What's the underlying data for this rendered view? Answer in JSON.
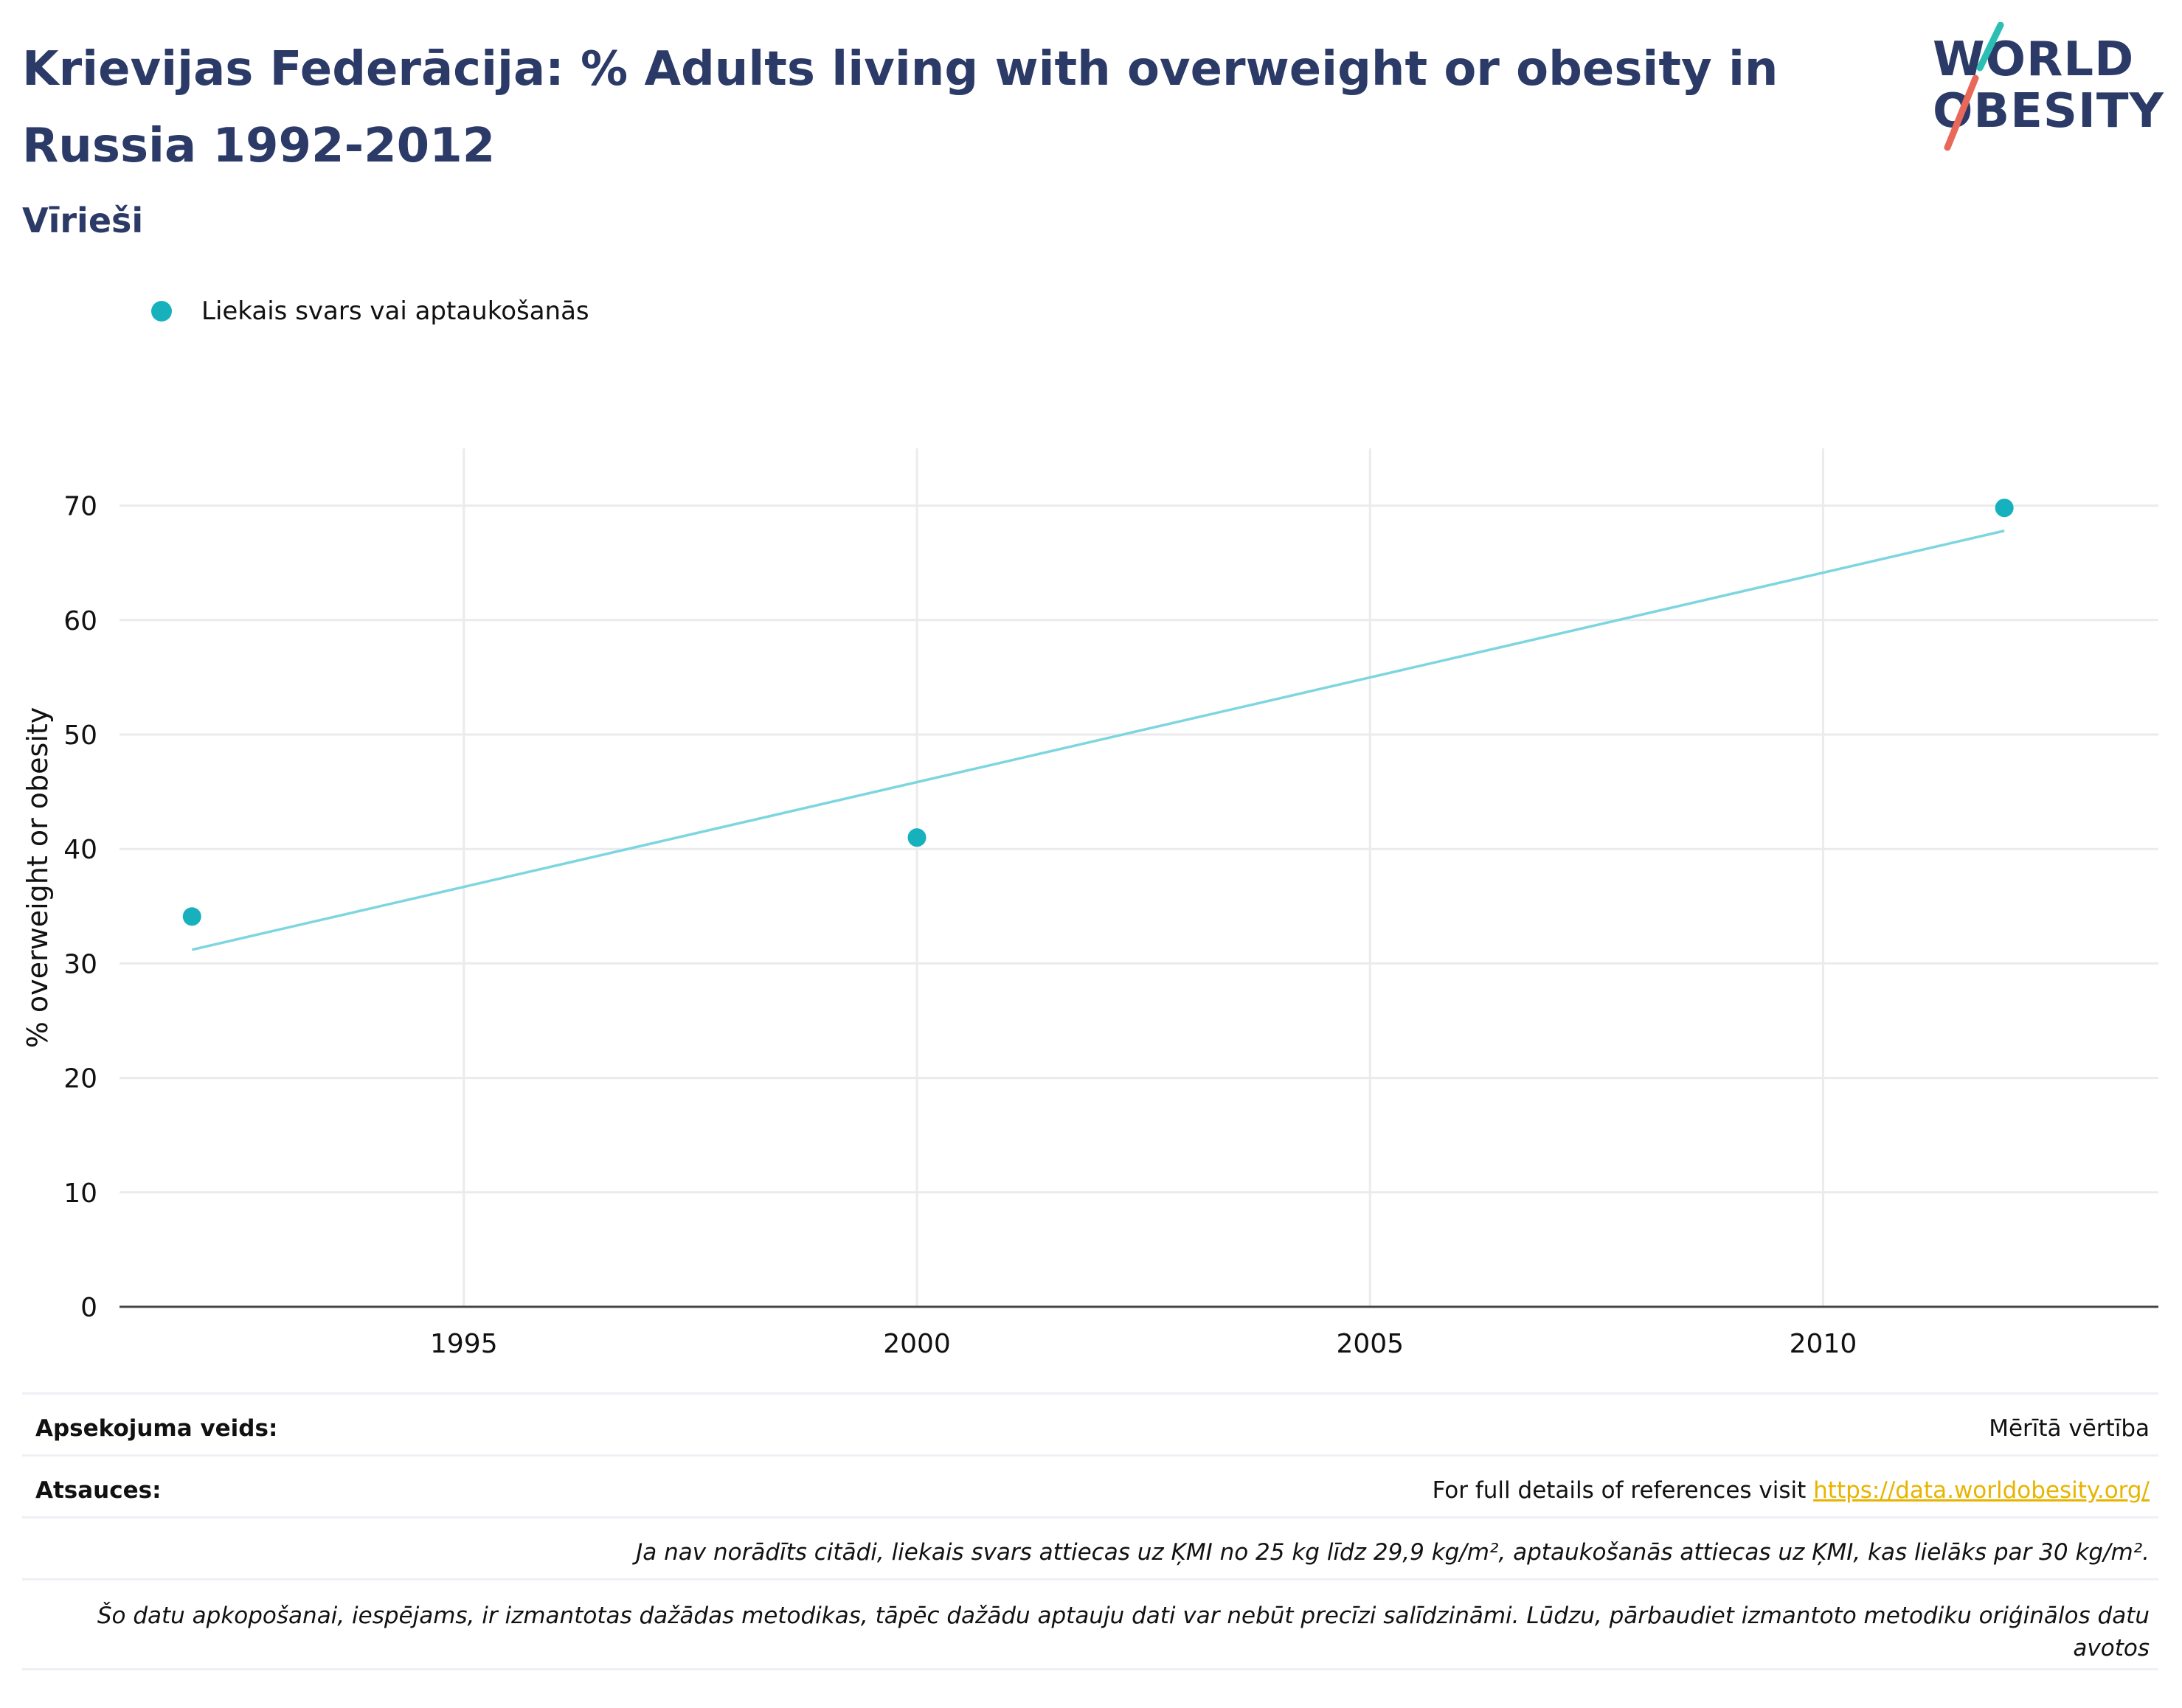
{
  "title": "Krievijas Federācija: % Adults living with overweight or obesity in Russia 1992-2012",
  "subtitle": "Vīrieši",
  "logo": {
    "line1": "WORLD",
    "line2": "OBESITY"
  },
  "colors": {
    "title": "#2b3a67",
    "series": "#17b1bd",
    "trend": "#7dd6df",
    "link": "#e8b400",
    "logo_teal": "#2bbfb4",
    "logo_red": "#e8685a"
  },
  "footer": {
    "survey_label": "Apsekojuma veids:",
    "survey_value": "Mērītā vērtība",
    "refs_label": "Atsauces:",
    "refs_text": "For full details of references visit ",
    "refs_link": "https://data.worldobesity.org/",
    "note1": "Ja nav norādīts citādi, liekais svars attiecas uz ĶMI no 25 kg līdz 29,9 kg/m², aptaukošanās attiecas uz ĶMI, kas lielāks par 30 kg/m².",
    "note2": "Šo datu apkopošanai, iespējams, ir izmantotas dažādas metodikas, tāpēc dažādu aptauju dati var nebūt precīzi salīdzināmi. Lūdzu, pārbaudiet izmantoto metodiku oriģinālos datu avotos"
  },
  "chart_data": {
    "type": "scatter",
    "ylabel": "% overweight or obesity",
    "xlabel": "",
    "xlim": [
      1991.2,
      2013.7
    ],
    "ylim": [
      0,
      75
    ],
    "x_ticks": [
      1995,
      2000,
      2005,
      2010
    ],
    "y_ticks": [
      0,
      10,
      20,
      30,
      40,
      50,
      60,
      70
    ],
    "grid": true,
    "legend_position": "top-left",
    "series": [
      {
        "name": "Liekais svars vai aptaukošanās",
        "x": [
          1992,
          2000,
          2012
        ],
        "y": [
          34.1,
          41.0,
          69.8
        ]
      }
    ],
    "trendline": {
      "x": [
        1992,
        2012
      ],
      "y": [
        31.2,
        67.8
      ]
    }
  }
}
